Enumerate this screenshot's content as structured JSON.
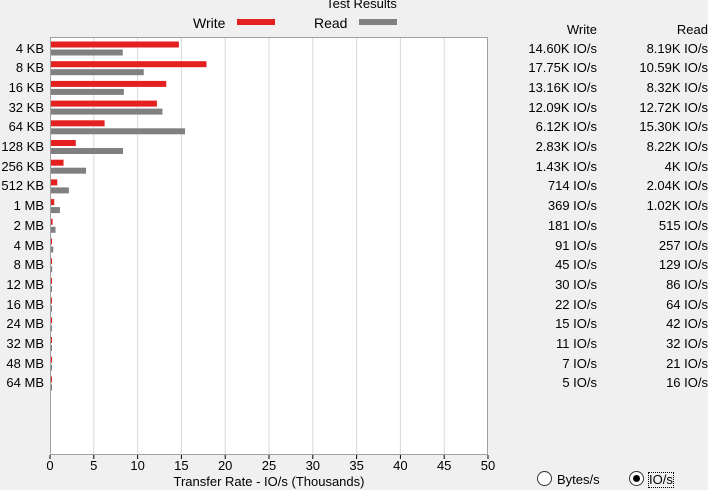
{
  "chart_data": {
    "type": "bar",
    "orientation": "horizontal",
    "title": "Test Results",
    "xlabel": "Transfer Rate - IO/s (Thousands)",
    "xlim": [
      0,
      50
    ],
    "xticks": [
      "0",
      "5",
      "10",
      "15",
      "20",
      "25",
      "30",
      "35",
      "40",
      "45",
      "50"
    ],
    "grid": true,
    "legend_position": "top",
    "categories": [
      "4 KB",
      "8 KB",
      "16 KB",
      "32 KB",
      "64 KB",
      "128 KB",
      "256 KB",
      "512 KB",
      "1 MB",
      "2 MB",
      "4 MB",
      "8 MB",
      "12 MB",
      "16 MB",
      "24 MB",
      "32 MB",
      "48 MB",
      "64 MB"
    ],
    "series": [
      {
        "name": "Write",
        "color": "#e52020",
        "values": [
          14.6,
          17.75,
          13.16,
          12.09,
          6.12,
          2.83,
          1.43,
          0.714,
          0.369,
          0.181,
          0.091,
          0.045,
          0.03,
          0.022,
          0.015,
          0.011,
          0.007,
          0.005
        ]
      },
      {
        "name": "Read",
        "color": "#808080",
        "values": [
          8.19,
          10.59,
          8.32,
          12.72,
          15.3,
          8.22,
          4.0,
          2.04,
          1.02,
          0.515,
          0.257,
          0.129,
          0.086,
          0.064,
          0.042,
          0.032,
          0.021,
          0.016
        ]
      }
    ]
  },
  "table": {
    "headers": {
      "write": "Write",
      "read": "Read"
    },
    "rows": [
      {
        "write": "14.60K IO/s",
        "read": "8.19K IO/s"
      },
      {
        "write": "17.75K IO/s",
        "read": "10.59K IO/s"
      },
      {
        "write": "13.16K IO/s",
        "read": "8.32K IO/s"
      },
      {
        "write": "12.09K IO/s",
        "read": "12.72K IO/s"
      },
      {
        "write": "6.12K IO/s",
        "read": "15.30K IO/s"
      },
      {
        "write": "2.83K IO/s",
        "read": "8.22K IO/s"
      },
      {
        "write": "1.43K IO/s",
        "read": "4K IO/s"
      },
      {
        "write": "714 IO/s",
        "read": "2.04K IO/s"
      },
      {
        "write": "369 IO/s",
        "read": "1.02K IO/s"
      },
      {
        "write": "181 IO/s",
        "read": "515 IO/s"
      },
      {
        "write": "91 IO/s",
        "read": "257 IO/s"
      },
      {
        "write": "45 IO/s",
        "read": "129 IO/s"
      },
      {
        "write": "30 IO/s",
        "read": "86 IO/s"
      },
      {
        "write": "22 IO/s",
        "read": "64 IO/s"
      },
      {
        "write": "15 IO/s",
        "read": "42 IO/s"
      },
      {
        "write": "11 IO/s",
        "read": "32 IO/s"
      },
      {
        "write": "7 IO/s",
        "read": "21 IO/s"
      },
      {
        "write": "5 IO/s",
        "read": "16 IO/s"
      }
    ]
  },
  "display_mode": {
    "options": [
      {
        "label": "Bytes/s",
        "selected": false
      },
      {
        "label": "IO/s",
        "selected": true
      }
    ]
  }
}
